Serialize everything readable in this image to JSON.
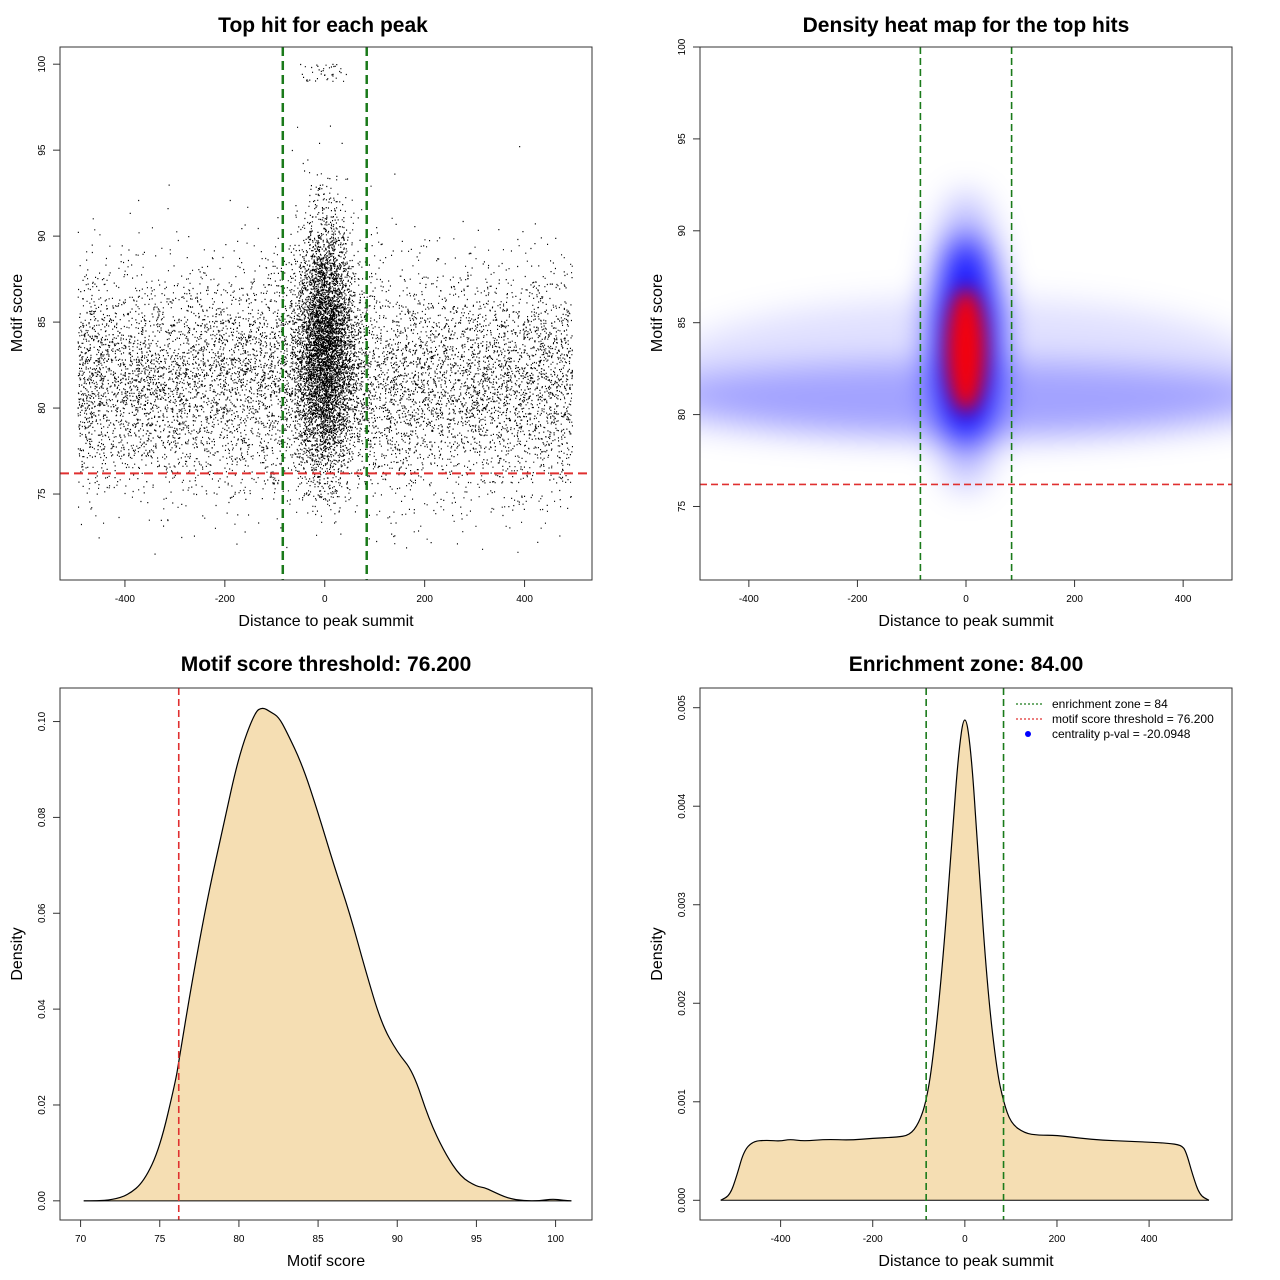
{
  "chart_data": [
    {
      "id": "scatter",
      "type": "scatter",
      "title": "Top hit for each peak",
      "xlabel": "Distance to peak summit",
      "ylabel": "Motif score",
      "xlim": [
        -530,
        535
      ],
      "ylim": [
        70,
        101
      ],
      "xticks": [
        -400,
        -200,
        0,
        200,
        400
      ],
      "yticks": [
        75,
        80,
        85,
        90,
        95,
        100
      ],
      "xtick_labels": [
        "-400",
        "-200",
        "0",
        "200",
        "400"
      ],
      "ytick_labels": [
        "75",
        "80",
        "85",
        "90",
        "95",
        "100"
      ],
      "point_color": "#000000",
      "vlines": [
        -84,
        84
      ],
      "hline": 76.2,
      "vline_color": "#1a7a1a",
      "hline_color": "#e03030",
      "point_distribution": {
        "x_range": [
          -495,
          495
        ],
        "central_x_sd": 28,
        "central_y_mean": 83.5,
        "central_y_sd": 3.6,
        "background_y_mean": 81.5,
        "background_y_sd": 3.2,
        "y_min": 71.5,
        "y_max": 100
      }
    },
    {
      "id": "heatmap",
      "type": "heatmap",
      "title": "Density heat map for the top hits",
      "xlabel": "Distance to peak summit",
      "ylabel": "Motif score",
      "xlim": [
        -490,
        490
      ],
      "ylim": [
        71,
        100
      ],
      "xticks": [
        -400,
        -200,
        0,
        200,
        400
      ],
      "yticks": [
        75,
        80,
        85,
        90,
        95,
        100
      ],
      "xtick_labels": [
        "-400",
        "-200",
        "0",
        "200",
        "400"
      ],
      "ytick_labels": [
        "75",
        "80",
        "85",
        "90",
        "95",
        "100"
      ],
      "vlines": [
        -84,
        84
      ],
      "hline": 76.2,
      "vline_color": "#1a7a1a",
      "hline_color": "#e03030",
      "colors": [
        "#ffffff",
        "#0000ff",
        "#ff0000"
      ],
      "hotspot": {
        "x": 0,
        "y": 83.5
      }
    },
    {
      "id": "score-density",
      "type": "area",
      "title": "Motif score threshold: 76.200",
      "xlabel": "Motif score",
      "ylabel": "Density",
      "xlim": [
        68.7,
        102.3
      ],
      "ylim": [
        -0.004,
        0.107
      ],
      "xticks": [
        70,
        75,
        80,
        85,
        90,
        95,
        100
      ],
      "yticks": [
        0.0,
        0.02,
        0.04,
        0.06,
        0.08,
        0.1
      ],
      "xtick_labels": [
        "70",
        "75",
        "80",
        "85",
        "90",
        "95",
        "100"
      ],
      "ytick_labels": [
        "0.00",
        "0.02",
        "0.04",
        "0.06",
        "0.08",
        "0.10"
      ],
      "fill_color": "#f5deb3",
      "line_color": "#000000",
      "vline": 76.2,
      "vline_color": "#e03030",
      "x": [
        70.2,
        71,
        72,
        73,
        74,
        75,
        76,
        76.2,
        77,
        78,
        79,
        80,
        81,
        81.5,
        82,
        82.5,
        83,
        84,
        85,
        86,
        87,
        88,
        89,
        90,
        91,
        92,
        93,
        94,
        95,
        95.5,
        96,
        97,
        98,
        99,
        99.8,
        100.5,
        101
      ],
      "y": [
        0.0,
        0.0,
        0.0002,
        0.0012,
        0.004,
        0.011,
        0.025,
        0.029,
        0.045,
        0.063,
        0.078,
        0.093,
        0.102,
        0.103,
        0.102,
        0.101,
        0.098,
        0.091,
        0.081,
        0.07,
        0.06,
        0.048,
        0.037,
        0.031,
        0.027,
        0.017,
        0.01,
        0.005,
        0.003,
        0.0028,
        0.002,
        0.0005,
        0.0,
        0.0,
        0.0004,
        0.0001,
        0.0
      ]
    },
    {
      "id": "distance-density",
      "type": "area",
      "title": "Enrichment zone: 84.00",
      "xlabel": "Distance to peak summit",
      "ylabel": "Density",
      "xlim": [
        -575,
        580
      ],
      "ylim": [
        -0.0002,
        0.0052
      ],
      "xticks": [
        -400,
        -200,
        0,
        200,
        400
      ],
      "yticks": [
        0.0,
        0.001,
        0.002,
        0.003,
        0.004,
        0.005
      ],
      "xtick_labels": [
        "-400",
        "-200",
        "0",
        "200",
        "400"
      ],
      "ytick_labels": [
        "0.000",
        "0.001",
        "0.002",
        "0.003",
        "0.004",
        "0.005"
      ],
      "fill_color": "#f5deb3",
      "line_color": "#000000",
      "vlines": [
        -84,
        84
      ],
      "vline_color": "#1a7a1a",
      "x": [
        -530,
        -510,
        -495,
        -480,
        -460,
        -430,
        -400,
        -380,
        -350,
        -300,
        -250,
        -200,
        -150,
        -120,
        -100,
        -84,
        -70,
        -50,
        -30,
        -15,
        0,
        15,
        30,
        50,
        70,
        84,
        100,
        130,
        160,
        200,
        250,
        300,
        350,
        400,
        440,
        470,
        480,
        495,
        510,
        530
      ],
      "y": [
        0.0,
        5e-05,
        0.00025,
        0.0005,
        0.0006,
        0.00061,
        0.0006,
        0.00062,
        0.0006,
        0.00062,
        0.00061,
        0.00063,
        0.00064,
        0.00066,
        0.00078,
        0.001,
        0.0014,
        0.0023,
        0.0035,
        0.0045,
        0.005,
        0.0045,
        0.0034,
        0.0021,
        0.0013,
        0.001,
        0.00078,
        0.00068,
        0.00066,
        0.00066,
        0.00063,
        0.00061,
        0.0006,
        0.00059,
        0.00058,
        0.00056,
        0.0005,
        0.00025,
        5e-05,
        0.0
      ],
      "legend": {
        "placement": "top-right",
        "entries": [
          {
            "label": "enrichment zone = 84",
            "color": "#1a7a1a",
            "marker": "dotted-line"
          },
          {
            "label": "motif score threshold = 76.200",
            "color": "#e03030",
            "marker": "dotted-line"
          },
          {
            "label": "centrality p-val = -20.0948",
            "color": "#0000ff",
            "marker": "dot"
          }
        ]
      }
    }
  ]
}
